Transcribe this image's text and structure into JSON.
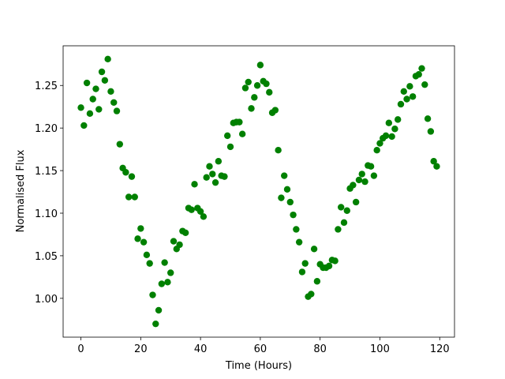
{
  "chart_data": {
    "type": "scatter",
    "x_label": "Time (Hours)",
    "y_label": "Normalised Flux",
    "color": "#008000",
    "x": [
      0,
      1,
      2,
      3,
      4,
      5,
      6,
      7,
      8,
      9,
      10,
      11,
      12,
      13,
      14,
      15,
      16,
      17,
      18,
      19,
      20,
      21,
      22,
      23,
      24,
      25,
      26,
      27,
      28,
      29,
      30,
      31,
      32,
      33,
      34,
      35,
      36,
      37,
      38,
      39,
      40,
      41,
      42,
      43,
      44,
      45,
      46,
      47,
      48,
      49,
      50,
      51,
      52,
      53,
      54,
      55,
      56,
      57,
      58,
      59,
      60,
      61,
      62,
      63,
      64,
      65,
      66,
      67,
      68,
      69,
      70,
      71,
      72,
      73,
      74,
      75,
      76,
      77,
      78,
      79,
      80,
      81,
      82,
      83,
      84,
      85,
      86,
      87,
      88,
      89,
      90,
      91,
      92,
      93,
      94,
      95,
      96,
      97,
      98,
      99,
      100,
      101,
      102,
      103,
      104,
      105,
      106,
      107,
      108,
      109,
      110,
      111,
      112,
      113,
      114,
      115,
      116,
      117,
      118,
      119
    ],
    "values": [
      1.224,
      1.203,
      1.253,
      1.217,
      1.234,
      1.246,
      1.222,
      1.266,
      1.256,
      1.281,
      1.243,
      1.23,
      1.22,
      1.181,
      1.153,
      1.148,
      1.119,
      1.143,
      1.119,
      1.07,
      1.082,
      1.066,
      1.051,
      1.041,
      1.004,
      0.97,
      0.986,
      1.017,
      1.042,
      1.019,
      1.03,
      1.067,
      1.058,
      1.063,
      1.079,
      1.077,
      1.106,
      1.104,
      1.134,
      1.106,
      1.102,
      1.096,
      1.142,
      1.155,
      1.146,
      1.136,
      1.161,
      1.144,
      1.143,
      1.191,
      1.178,
      1.206,
      1.207,
      1.207,
      1.193,
      1.247,
      1.254,
      1.223,
      1.236,
      1.25,
      1.274,
      1.255,
      1.252,
      1.242,
      1.218,
      1.221,
      1.174,
      1.118,
      1.144,
      1.128,
      1.113,
      1.098,
      1.081,
      1.066,
      1.031,
      1.041,
      1.002,
      1.005,
      1.058,
      1.02,
      1.04,
      1.036,
      1.036,
      1.038,
      1.045,
      1.044,
      1.081,
      1.107,
      1.089,
      1.103,
      1.129,
      1.133,
      1.113,
      1.139,
      1.146,
      1.137,
      1.156,
      1.155,
      1.144,
      1.174,
      1.182,
      1.188,
      1.191,
      1.206,
      1.19,
      1.199,
      1.21,
      1.228,
      1.243,
      1.234,
      1.249,
      1.237,
      1.261,
      1.263,
      1.27,
      1.251,
      1.211,
      1.196,
      1.161,
      1.155
    ],
    "xlim": [
      -5.95,
      124.95
    ],
    "ylim": [
      0.9544,
      1.2966
    ],
    "xticks": [
      0,
      20,
      40,
      60,
      80,
      100,
      120
    ],
    "yticks": [
      {
        "value": 1.0,
        "label": "1.00"
      },
      1.05,
      {
        "value": 1.1,
        "label": "1.10"
      },
      1.15,
      {
        "value": 1.2,
        "label": "1.20"
      },
      1.25
    ]
  }
}
